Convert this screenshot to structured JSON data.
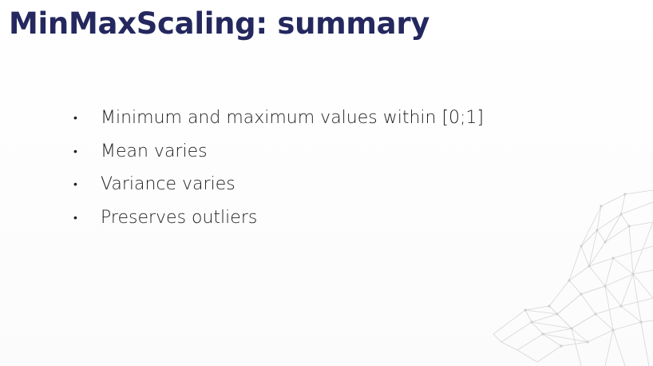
{
  "slide": {
    "title": "MinMaxScaling: summary",
    "bullets": [
      {
        "text": "Minimum and maximum values within [0;1]"
      },
      {
        "text": "Mean varies"
      },
      {
        "text": "Variance varies"
      },
      {
        "text": "Preserves outliers"
      }
    ],
    "bullet_symbol": "•",
    "decoration_icon": "network-mesh-icon",
    "colors": {
      "title": "#24285e",
      "text": "#222222",
      "decoration": "#d6d6d6"
    }
  }
}
